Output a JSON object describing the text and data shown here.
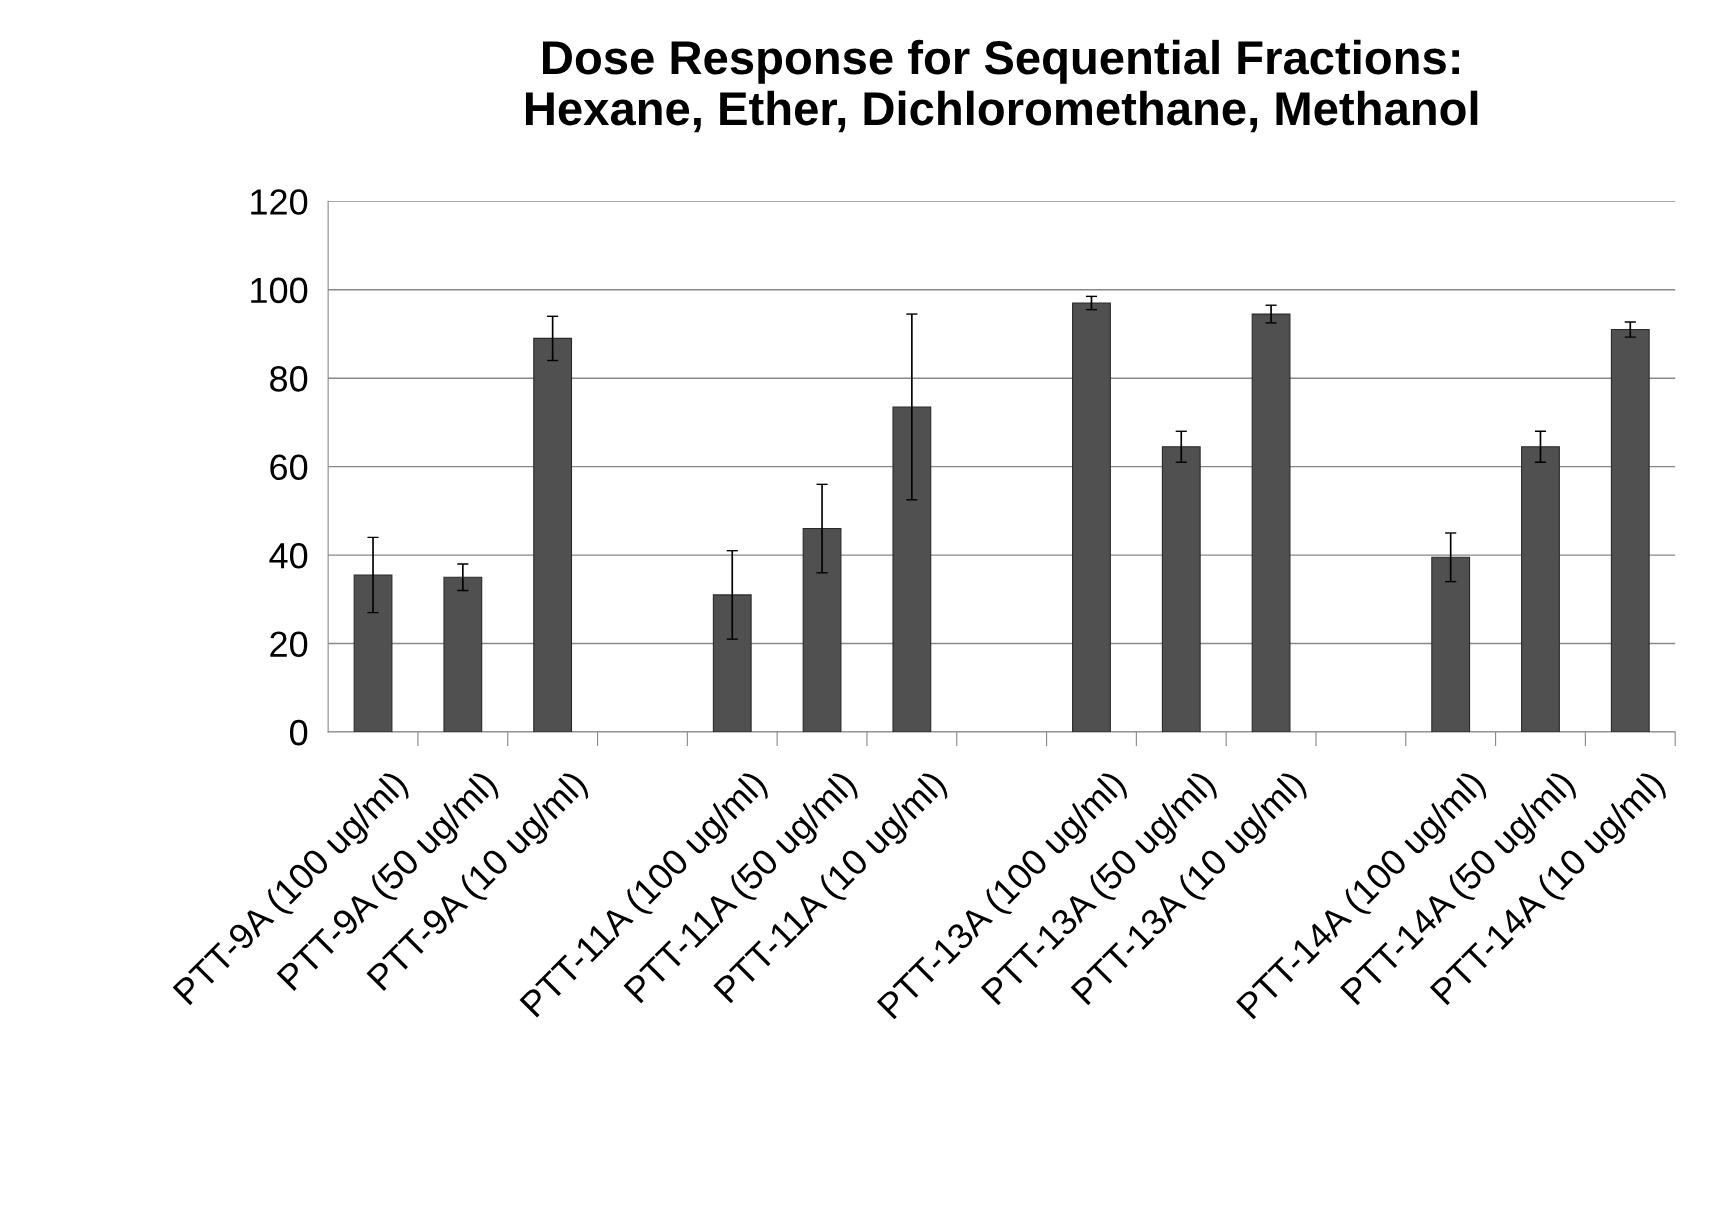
{
  "chart_data": {
    "type": "bar",
    "title": "Dose Response for Sequential Fractions:\nHexane, Ether, Dichloromethane, Methanol",
    "categories": [
      "PTT-9A (100 ug/ml)",
      "PTT-9A (50 ug/ml)",
      "PTT-9A (10 ug/ml)",
      null,
      "PTT-11A (100 ug/ml)",
      "PTT-11A (50 ug/ml)",
      "PTT-11A (10 ug/ml)",
      null,
      "PTT-13A (100 ug/ml)",
      "PTT-13A (50 ug/ml)",
      "PTT-13A (10 ug/ml)",
      null,
      "PTT-14A (100 ug/ml)",
      "PTT-14A (50 ug/ml)",
      "PTT-14A (10 ug/ml)"
    ],
    "values": [
      35.5,
      35,
      89,
      null,
      31,
      46,
      73.5,
      null,
      97,
      64.5,
      94.5,
      null,
      39.5,
      64.5,
      91
    ],
    "errors": [
      8.5,
      3,
      5,
      null,
      10,
      10,
      21,
      null,
      1.5,
      3.5,
      2,
      null,
      5.5,
      3.5,
      1.7
    ],
    "color": "#505050",
    "ylim": [
      0,
      120
    ],
    "yticks": [
      0,
      20,
      40,
      60,
      80,
      100,
      120
    ],
    "grid": "y"
  }
}
